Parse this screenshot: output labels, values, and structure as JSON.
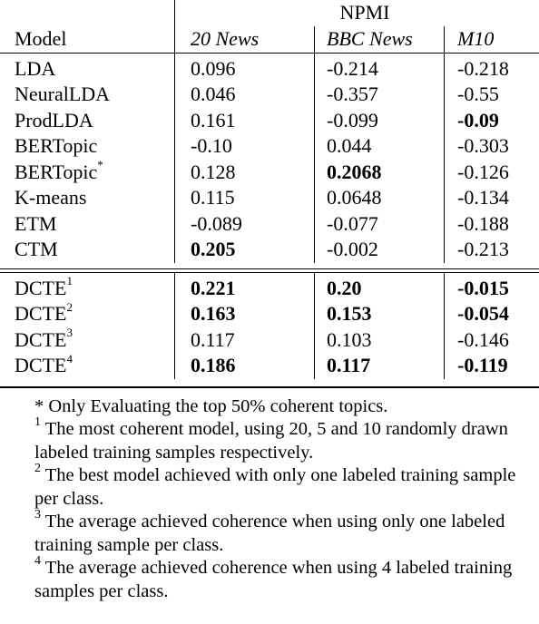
{
  "table": {
    "group_header": "NPMI",
    "columns": [
      "Model",
      "20 News",
      "BBC News",
      "M10"
    ],
    "rows": [
      {
        "model": "LDA",
        "sup": "",
        "v": [
          "0.096",
          "-0.214",
          "-0.218"
        ],
        "bold": [
          false,
          false,
          false
        ]
      },
      {
        "model": "NeuralLDA",
        "sup": "",
        "v": [
          "0.046",
          "-0.357",
          "-0.55"
        ],
        "bold": [
          false,
          false,
          false
        ]
      },
      {
        "model": "ProdLDA",
        "sup": "",
        "v": [
          "0.161",
          "-0.099",
          "-0.09"
        ],
        "bold": [
          false,
          false,
          true
        ]
      },
      {
        "model": "BERTopic",
        "sup": "",
        "v": [
          "-0.10",
          "0.044",
          "-0.303"
        ],
        "bold": [
          false,
          false,
          false
        ]
      },
      {
        "model": "BERTopic",
        "sup": "*",
        "v": [
          "0.128",
          "0.2068",
          "-0.126"
        ],
        "bold": [
          false,
          true,
          false
        ]
      },
      {
        "model": "K-means",
        "sup": "",
        "v": [
          "0.115",
          "0.0648",
          "-0.134"
        ],
        "bold": [
          false,
          false,
          false
        ]
      },
      {
        "model": "ETM",
        "sup": "",
        "v": [
          "-0.089",
          "-0.077",
          "-0.188"
        ],
        "bold": [
          false,
          false,
          false
        ]
      },
      {
        "model": "CTM",
        "sup": "",
        "v": [
          "0.205",
          "-0.002",
          "-0.213"
        ],
        "bold": [
          true,
          false,
          false
        ]
      }
    ],
    "dcte_rows": [
      {
        "model": "DCTE",
        "sup": "1",
        "v": [
          "0.221",
          "0.20",
          "-0.015"
        ],
        "bold": [
          true,
          true,
          true
        ]
      },
      {
        "model": "DCTE",
        "sup": "2",
        "v": [
          "0.163",
          "0.153",
          "-0.054"
        ],
        "bold": [
          true,
          true,
          true
        ]
      },
      {
        "model": "DCTE",
        "sup": "3",
        "v": [
          "0.117",
          "0.103",
          "-0.146"
        ],
        "bold": [
          false,
          false,
          false
        ]
      },
      {
        "model": "DCTE",
        "sup": "4",
        "v": [
          "0.186",
          "0.117",
          "-0.119"
        ],
        "bold": [
          true,
          true,
          true
        ]
      }
    ]
  },
  "notes": [
    {
      "mark": "*",
      "text": "Only Evaluating the top 50% coherent topics."
    },
    {
      "mark": "1",
      "text": "The most coherent model, using 20, 5 and 10 randomly drawn labeled training samples respectively."
    },
    {
      "mark": "2",
      "text": "The best model achieved with only one labeled training sample per class."
    },
    {
      "mark": "3",
      "text": "The average achieved coherence when using only one labeled training sample per class."
    },
    {
      "mark": "4",
      "text": "The average achieved coherence when using 4 labeled training samples per class."
    }
  ]
}
